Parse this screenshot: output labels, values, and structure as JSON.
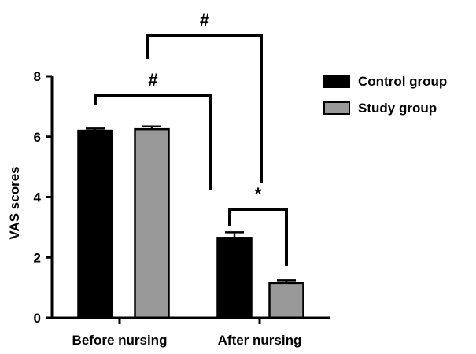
{
  "chart_data": {
    "type": "bar",
    "title": "",
    "xlabel": "",
    "ylabel": "VAS scores",
    "ylim": [
      0,
      8
    ],
    "yticks": [
      0,
      2,
      4,
      6,
      8
    ],
    "grid": false,
    "legend_position": "top-right",
    "categories": [
      "Before nursing",
      "After nursing"
    ],
    "series": [
      {
        "name": "Control group",
        "color": "#000000",
        "values": [
          6.2,
          2.65
        ],
        "errors": [
          0.07,
          0.18
        ]
      },
      {
        "name": "Study group",
        "color": "#999999",
        "values": [
          6.25,
          1.15
        ],
        "errors": [
          0.09,
          0.09
        ]
      }
    ],
    "annotations": [
      {
        "label": "#",
        "between": [
          "Before nursing / Control group",
          "After nursing / Control group"
        ]
      },
      {
        "label": "#",
        "between": [
          "Before nursing / Study group",
          "After nursing / Study group"
        ]
      },
      {
        "label": "*",
        "between": [
          "After nursing / Control group",
          "After nursing / Study group"
        ]
      }
    ]
  }
}
